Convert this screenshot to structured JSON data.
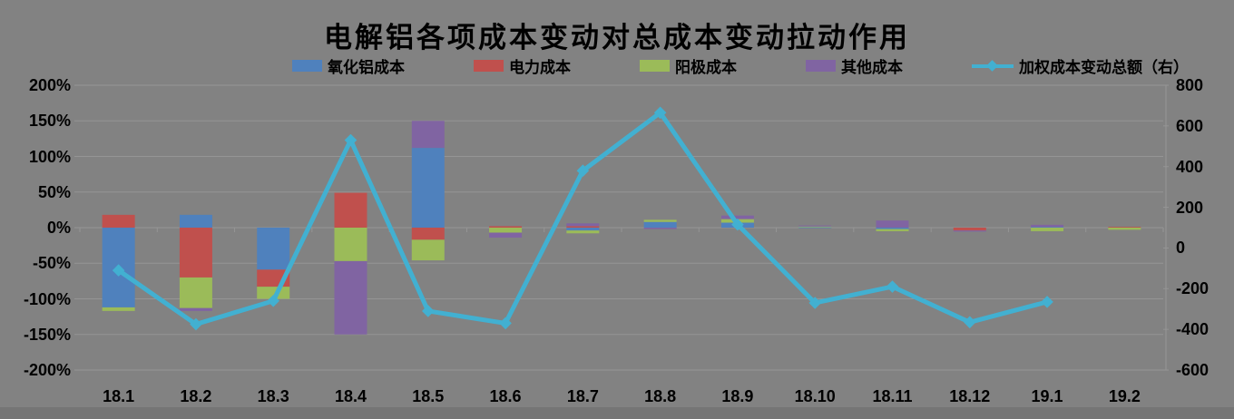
{
  "title": "电解铝各项成本变动对总成本变动拉动作用",
  "colors": {
    "alumina": "#4F81BD",
    "power": "#C0504D",
    "anode": "#9BBB59",
    "other": "#8064A2",
    "line": "#42B0D1",
    "grid": "#959595",
    "text": "#000000",
    "background": "#828282"
  },
  "chart_data": {
    "type": "combo-stacked-bar-line",
    "title": "电解铝各项成本变动对总成本变动拉动作用",
    "categories": [
      "18.1",
      "18.2",
      "18.3",
      "18.4",
      "18.5",
      "18.6",
      "18.7",
      "18.8",
      "18.9",
      "18.10",
      "18.11",
      "18.12",
      "19.1",
      "19.2"
    ],
    "series": [
      {
        "name": "氧化铝成本",
        "type": "bar",
        "axis": "left",
        "unit": "%",
        "color_key": "alumina",
        "values": [
          -112,
          18,
          -59,
          0,
          112,
          0,
          -4,
          8,
          7,
          1,
          -2,
          0,
          1,
          0
        ]
      },
      {
        "name": "电力成本",
        "type": "bar",
        "axis": "left",
        "unit": "%",
        "color_key": "power",
        "values": [
          18,
          -70,
          -24,
          49,
          -17,
          2,
          2,
          0,
          0,
          0,
          0,
          -4,
          0,
          1
        ]
      },
      {
        "name": "阳极成本",
        "type": "bar",
        "axis": "left",
        "unit": "%",
        "color_key": "anode",
        "values": [
          -5,
          -43,
          -17,
          -47,
          -29,
          -7,
          -4,
          3,
          5,
          1,
          -3,
          0,
          -5,
          -3
        ]
      },
      {
        "name": "其他成本",
        "type": "bar",
        "axis": "left",
        "unit": "%",
        "color_key": "other",
        "values": [
          0,
          -4,
          0,
          -103,
          38,
          -7,
          4,
          -2,
          5,
          1,
          10,
          -1,
          3,
          0
        ]
      },
      {
        "name": "加权成本变动总额（右）",
        "type": "line",
        "axis": "right",
        "color_key": "line",
        "values": [
          -110,
          -375,
          -260,
          530,
          -310,
          -370,
          380,
          665,
          115,
          -270,
          -190,
          -365,
          -265,
          null
        ]
      }
    ],
    "left_axis": {
      "min": -200,
      "max": 200,
      "step": 50,
      "format": "percent",
      "tick_labels": [
        "200%",
        "150%",
        "100%",
        "50%",
        "0%",
        "-50%",
        "-100%",
        "-150%",
        "-200%"
      ]
    },
    "right_axis": {
      "min": -600,
      "max": 800,
      "step": 200,
      "tick_labels": [
        "800",
        "600",
        "400",
        "200",
        "0",
        "-200",
        "-400",
        "-600"
      ]
    },
    "legend_position": "top",
    "grid": true
  }
}
